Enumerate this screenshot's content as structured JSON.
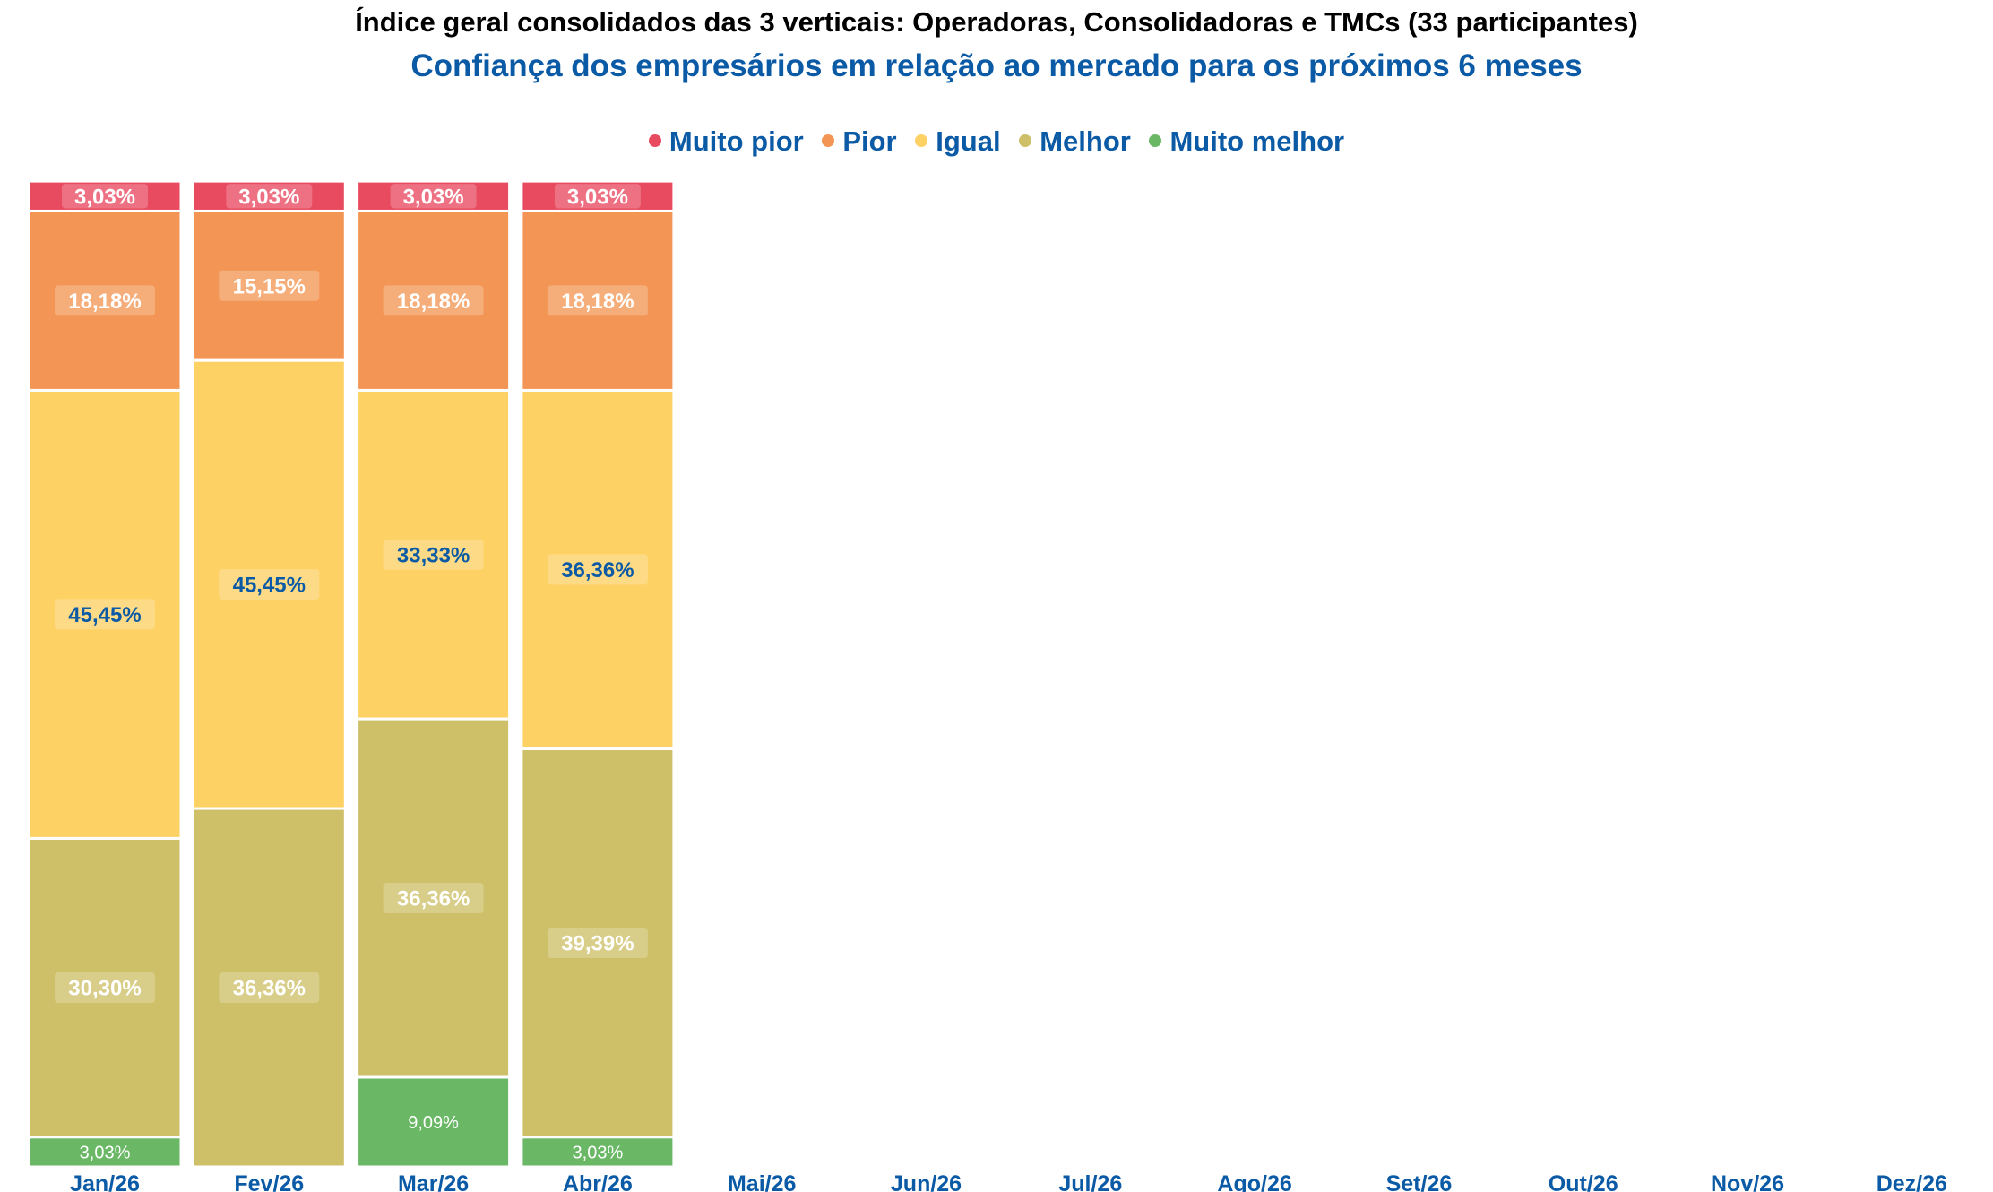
{
  "chart_data": {
    "type": "bar",
    "stacked": true,
    "title": "Índice geral consolidados das 3 verticais: Operadoras, Consolidadoras e TMCs (33 participantes)",
    "subtitle": "Confiança dos empresários em relação ao mercado para os próximos 6 meses",
    "categories": [
      "Jan/26",
      "Fev/26",
      "Mar/26",
      "Abr/26",
      "Mai/26",
      "Jun/26",
      "Jul/26",
      "Ago/26",
      "Set/26",
      "Out/26",
      "Nov/26",
      "Dez/26"
    ],
    "series": [
      {
        "name": "Muito pior",
        "color": "#e84a5f",
        "values": [
          3.03,
          3.03,
          3.03,
          3.03,
          null,
          null,
          null,
          null,
          null,
          null,
          null,
          null
        ],
        "labels": [
          "3,03%",
          "3,03%",
          "3,03%",
          "3,03%",
          "",
          "",
          "",
          "",
          "",
          "",
          "",
          ""
        ]
      },
      {
        "name": "Pior",
        "color": "#f39655",
        "values": [
          18.18,
          15.15,
          18.18,
          18.18,
          null,
          null,
          null,
          null,
          null,
          null,
          null,
          null
        ],
        "labels": [
          "18,18%",
          "15,15%",
          "18,18%",
          "18,18%",
          "",
          "",
          "",
          "",
          "",
          "",
          "",
          ""
        ]
      },
      {
        "name": "Igual",
        "color": "#fdd164",
        "values": [
          45.45,
          45.45,
          33.33,
          36.36,
          null,
          null,
          null,
          null,
          null,
          null,
          null,
          null
        ],
        "labels": [
          "45,45%",
          "45,45%",
          "33,33%",
          "36,36%",
          "",
          "",
          "",
          "",
          "",
          "",
          "",
          ""
        ]
      },
      {
        "name": "Melhor",
        "color": "#cdc069",
        "values": [
          30.3,
          36.36,
          36.36,
          39.39,
          null,
          null,
          null,
          null,
          null,
          null,
          null,
          null
        ],
        "labels": [
          "30,30%",
          "36,36%",
          "36,36%",
          "39,39%",
          "",
          "",
          "",
          "",
          "",
          "",
          "",
          ""
        ]
      },
      {
        "name": "Muito melhor",
        "color": "#6ab866",
        "values": [
          3.03,
          null,
          9.09,
          3.03,
          null,
          null,
          null,
          null,
          null,
          null,
          null,
          null
        ],
        "labels": [
          "3,03%",
          "",
          "9,09%",
          "3,03%",
          "",
          "",
          "",
          "",
          "",
          "",
          "",
          ""
        ]
      }
    ],
    "ylim": [
      0,
      100
    ],
    "legend_position": "top-center",
    "grid": false
  }
}
